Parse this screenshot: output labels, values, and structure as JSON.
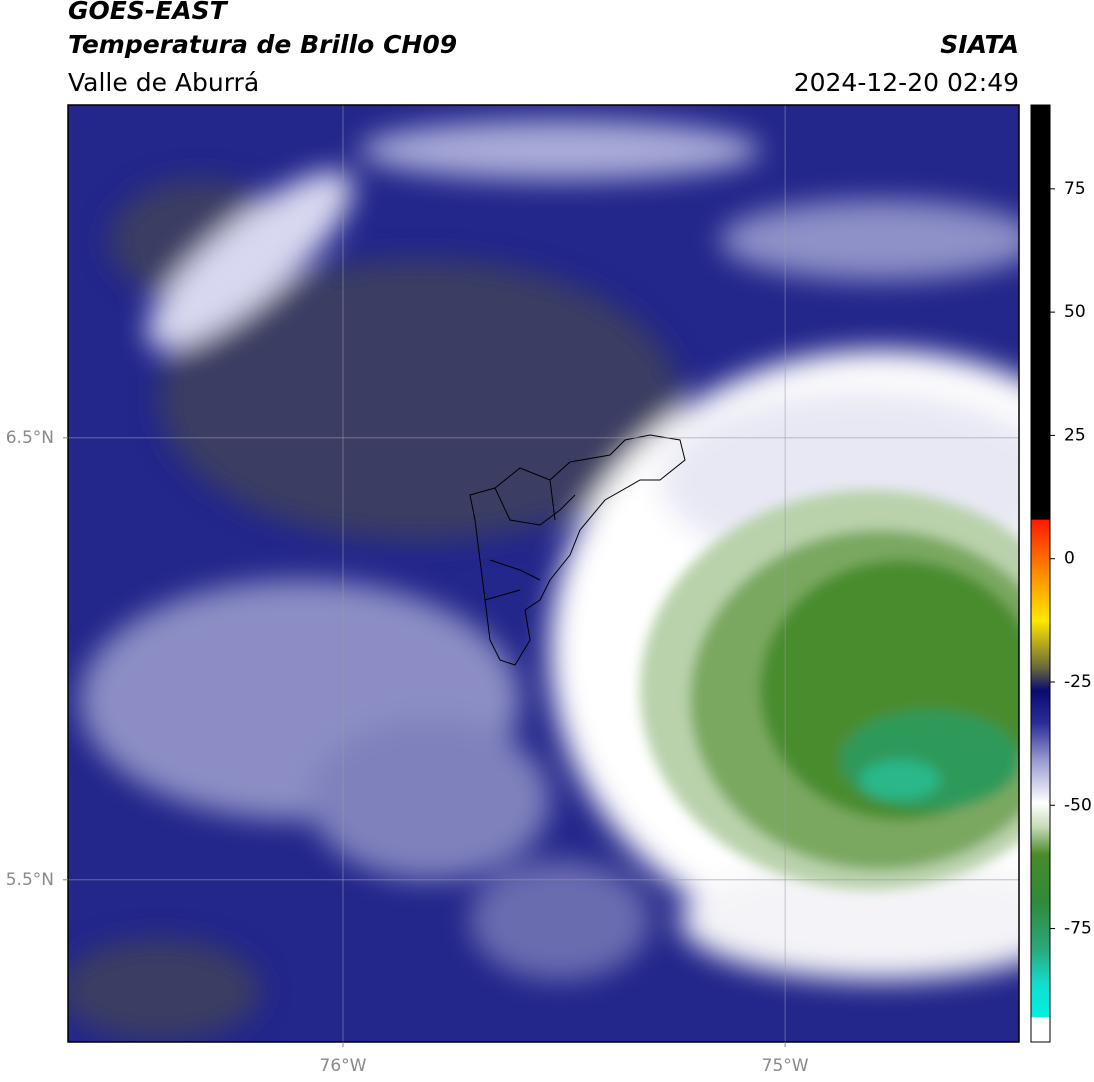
{
  "header": {
    "title": "GOES-EAST",
    "subtitle": "Temperatura de Brillo CH09",
    "region": "Valle de Aburrá",
    "source": "SIATA",
    "datetime": "2024-12-20 02:49"
  },
  "map": {
    "xlim": [
      -76.622,
      -74.471
    ],
    "ylim": [
      5.133,
      7.253
    ],
    "xticks": [
      {
        "value": -76,
        "label": "76°W"
      },
      {
        "value": -75,
        "label": "75°W"
      }
    ],
    "yticks": [
      {
        "value": 5.5,
        "label": "5.5°N"
      },
      {
        "value": 6.5,
        "label": "6.5°N"
      }
    ],
    "grid": true
  },
  "colorbar": {
    "lim": [
      -98,
      92
    ],
    "ticks": [
      -75,
      -50,
      -25,
      0,
      25,
      50,
      75
    ]
  }
}
